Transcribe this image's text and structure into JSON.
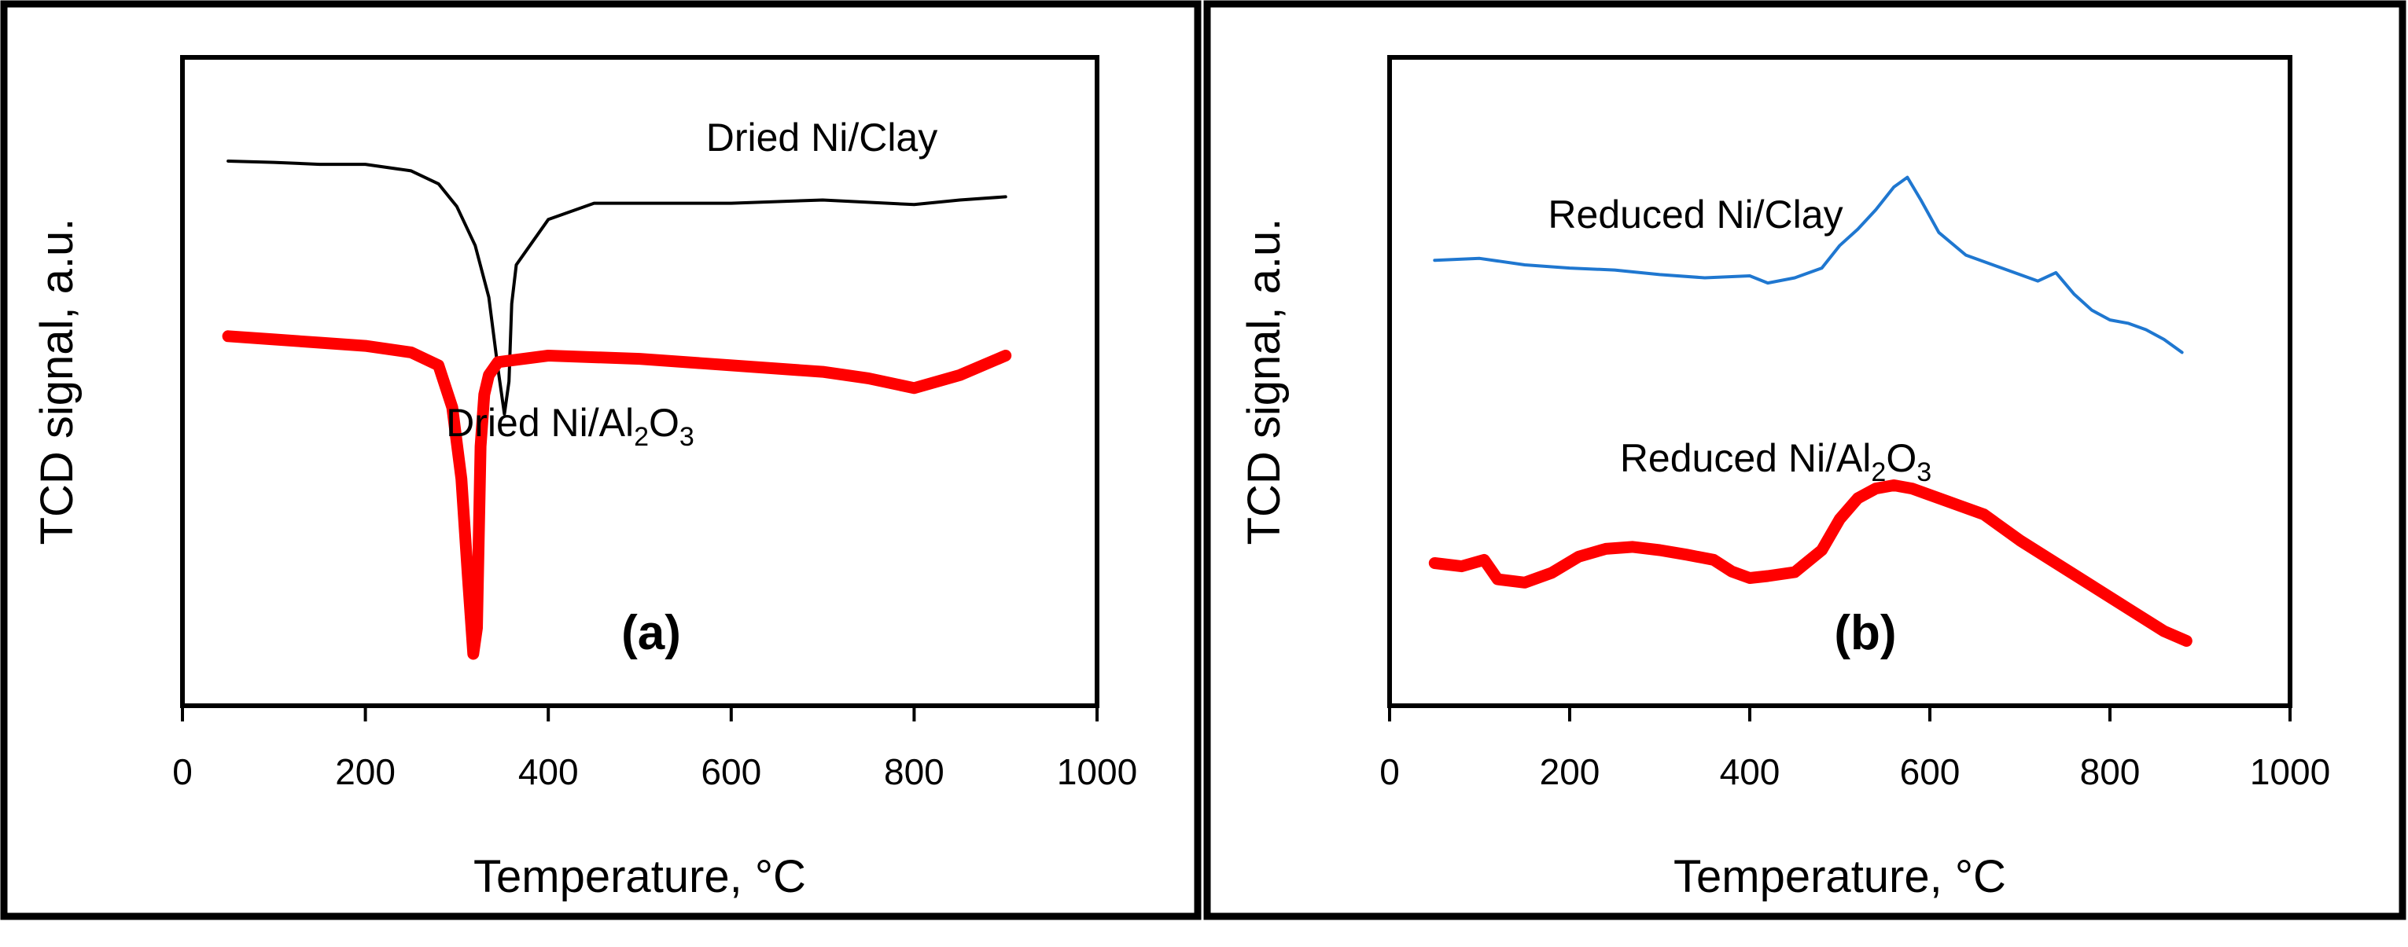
{
  "chart_data": [
    {
      "type": "line",
      "panel_label": "(a)",
      "xlabel": "Temperature, °C",
      "ylabel": "TCD signal, a.u.",
      "xlim": [
        0,
        1000
      ],
      "xticks": [
        "0",
        "200",
        "400",
        "600",
        "800",
        "1000"
      ],
      "ylim": [
        0,
        100
      ],
      "series": [
        {
          "name": "Dried Ni/Clay",
          "label_parts": [
            "Dried Ni/Clay"
          ],
          "color": "#000000",
          "style": "thin",
          "x": [
            50,
            100,
            150,
            200,
            250,
            280,
            300,
            320,
            335,
            345,
            352,
            357,
            360,
            365,
            380,
            400,
            450,
            500,
            600,
            700,
            800,
            850,
            900
          ],
          "y": [
            84,
            83.8,
            83.5,
            83.5,
            82.5,
            80.5,
            77,
            71,
            63,
            52,
            45,
            50,
            62,
            68,
            71,
            75,
            77.5,
            77.5,
            77.5,
            78,
            77.3,
            78,
            78.5
          ]
        },
        {
          "name": "Dried Ni/Al2O3",
          "label_parts": [
            "Dried Ni/Al",
            "2",
            "O",
            "3"
          ],
          "color": "#ff0000",
          "style": "thick",
          "x": [
            50,
            100,
            150,
            200,
            250,
            280,
            295,
            305,
            312,
            318,
            322,
            326,
            330,
            335,
            345,
            400,
            500,
            600,
            700,
            750,
            800,
            850,
            900
          ],
          "y": [
            57,
            56.5,
            56,
            55.5,
            54.5,
            52.5,
            46,
            35,
            20,
            8,
            12,
            40,
            48,
            51,
            53,
            54,
            53.5,
            52.5,
            51.5,
            50.5,
            49,
            51,
            54
          ]
        }
      ]
    },
    {
      "type": "line",
      "panel_label": "(b)",
      "xlabel": "Temperature, °C",
      "ylabel": "TCD signal, a.u.",
      "xlim": [
        0,
        1000
      ],
      "xticks": [
        "0",
        "200",
        "400",
        "600",
        "800",
        "1000"
      ],
      "ylim": [
        0,
        100
      ],
      "series": [
        {
          "name": "Reduced Ni/Clay",
          "label_parts": [
            "Reduced Ni/Clay"
          ],
          "color": "#1f77d0",
          "style": "thin",
          "x": [
            50,
            100,
            150,
            200,
            250,
            300,
            350,
            400,
            420,
            450,
            480,
            500,
            520,
            540,
            560,
            575,
            590,
            610,
            640,
            680,
            720,
            740,
            760,
            780,
            800,
            820,
            840,
            860,
            880
          ],
          "y": [
            68.7,
            69,
            68,
            67.5,
            67.2,
            66.5,
            66,
            66.3,
            65.2,
            66,
            67.5,
            71,
            73.5,
            76.5,
            80,
            81.5,
            78,
            73,
            69.5,
            67.5,
            65.5,
            66.8,
            63.5,
            61,
            59.5,
            59,
            58,
            56.5,
            54.5
          ]
        },
        {
          "name": "Reduced Ni/Al2O3",
          "label_parts": [
            "Reduced Ni/Al",
            "2",
            "O",
            "3"
          ],
          "color": "#ff0000",
          "style": "thick",
          "x": [
            50,
            80,
            105,
            120,
            150,
            180,
            210,
            240,
            270,
            300,
            330,
            360,
            380,
            400,
            420,
            450,
            480,
            500,
            520,
            540,
            560,
            580,
            620,
            660,
            700,
            740,
            780,
            820,
            860,
            885
          ],
          "y": [
            22,
            21.5,
            22.5,
            19.5,
            19,
            20.5,
            23,
            24.2,
            24.5,
            24,
            23.3,
            22.5,
            20.7,
            19.7,
            20,
            20.6,
            24,
            28.8,
            32,
            33.5,
            34,
            33.5,
            31.5,
            29.5,
            25.5,
            22,
            18.5,
            15,
            11.5,
            10
          ]
        }
      ]
    }
  ]
}
